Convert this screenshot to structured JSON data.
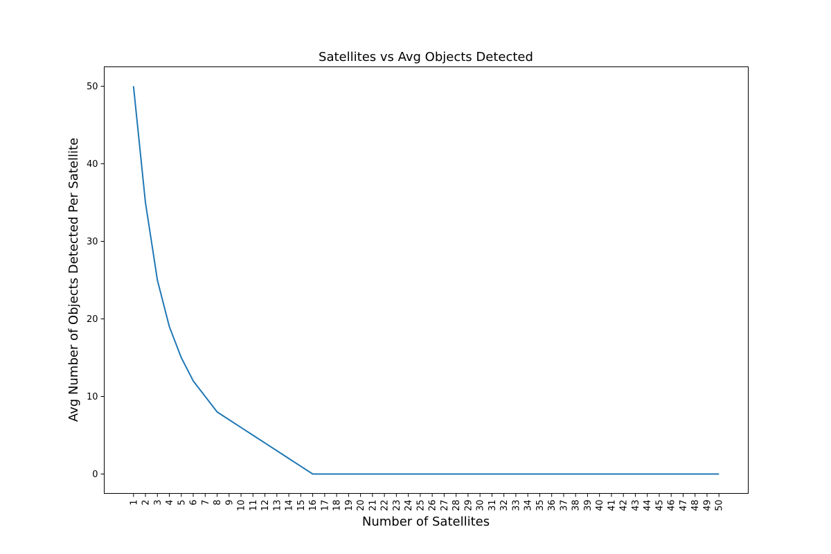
{
  "chart_data": {
    "type": "line",
    "title": "Satellites vs Avg Objects Detected",
    "xlabel": "Number of Satellites",
    "ylabel": "Avg Number of Objects Detected Per Satellite",
    "x": [
      1,
      2,
      3,
      4,
      5,
      6,
      7,
      8,
      9,
      10,
      11,
      12,
      13,
      14,
      15,
      16,
      17,
      18,
      19,
      20,
      21,
      22,
      23,
      24,
      25,
      26,
      27,
      28,
      29,
      30,
      31,
      32,
      33,
      34,
      35,
      36,
      37,
      38,
      39,
      40,
      41,
      42,
      43,
      44,
      45,
      46,
      47,
      48,
      49,
      50
    ],
    "x_tick_labels": [
      "1",
      "2",
      "3",
      "4",
      "5",
      "6",
      "7",
      "8",
      "9",
      "10",
      "11",
      "12",
      "13",
      "14",
      "15",
      "16",
      "17",
      "18",
      "19",
      "20",
      "21",
      "22",
      "23",
      "24",
      "25",
      "26",
      "27",
      "28",
      "29",
      "30",
      "31",
      "32",
      "33",
      "34",
      "35",
      "36",
      "37",
      "38",
      "39",
      "40",
      "41",
      "42",
      "43",
      "44",
      "45",
      "46",
      "47",
      "48",
      "49",
      "50"
    ],
    "series": [
      {
        "values": [
          50,
          35,
          25,
          19,
          15,
          12,
          10,
          8,
          7,
          6,
          5,
          4,
          3,
          2,
          1,
          0,
          0,
          0,
          0,
          0,
          0,
          0,
          0,
          0,
          0,
          0,
          0,
          0,
          0,
          0,
          0,
          0,
          0,
          0,
          0,
          0,
          0,
          0,
          0,
          0,
          0,
          0,
          0,
          0,
          0,
          0,
          0,
          0,
          0,
          0
        ],
        "color": "#1f77b4"
      }
    ],
    "y_ticks": [
      0,
      10,
      20,
      30,
      40,
      50
    ],
    "y_tick_labels": [
      "0",
      "10",
      "20",
      "30",
      "40",
      "50"
    ],
    "xlim": [
      -1.45,
      52.45
    ],
    "ylim": [
      -2.5,
      52.5
    ],
    "grid": false,
    "legend": "none"
  }
}
